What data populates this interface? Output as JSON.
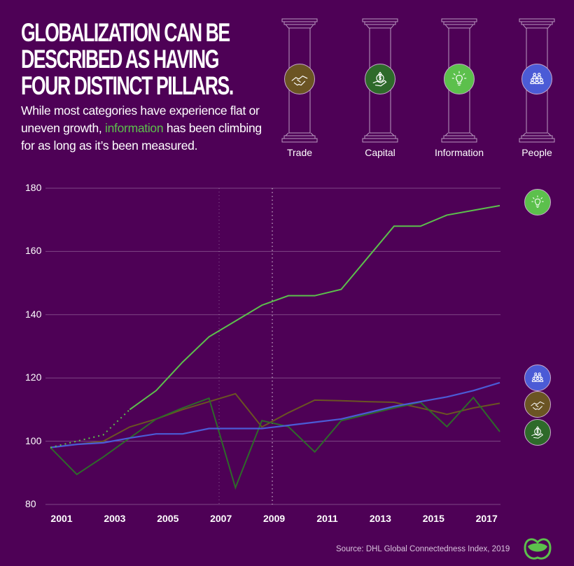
{
  "header": {
    "title": "GLOBALIZATION CAN BE\nDESCRIBED AS HAVING\nFOUR DISTINCT PILLARS.",
    "subtitle_before": "While most categories have experience flat or uneven growth, ",
    "subtitle_highlight": "information",
    "subtitle_after": " has been climbing for as long as it’s been measured."
  },
  "pillars": [
    {
      "label": "Trade",
      "icon": "handshake-icon",
      "color": "#6b5423"
    },
    {
      "label": "Capital",
      "icon": "money-bag-hand-icon",
      "color": "#2e6a2a"
    },
    {
      "label": "Information",
      "icon": "lightbulb-icon",
      "color": "#5cc04c"
    },
    {
      "label": "People",
      "icon": "people-group-icon",
      "color": "#4b5bd6"
    }
  ],
  "source": "Source: DHL Global Connectedness Index, 2019",
  "chart_data": {
    "type": "line",
    "xlabel": "",
    "ylabel": "",
    "ylim": [
      80,
      180
    ],
    "yticks": [
      "180",
      "160",
      "140",
      "120",
      "100",
      "80"
    ],
    "xticks": [
      "2001",
      "2003",
      "2005",
      "2007",
      "2009",
      "2011",
      "2013",
      "2015",
      "2017"
    ],
    "grid": true,
    "x": [
      2001,
      2002,
      2003,
      2004,
      2005,
      2006,
      2007,
      2008,
      2009,
      2010,
      2011,
      2012,
      2013,
      2014,
      2015,
      2016,
      2017,
      2018
    ],
    "series": [
      {
        "key": "information",
        "color": "#5cc04c",
        "dotted_until": 2004,
        "values": [
          98,
          100,
          102,
          110,
          116,
          125,
          133,
          138,
          143,
          146,
          146,
          148,
          158,
          168,
          168,
          171.5,
          173,
          174.5
        ]
      },
      {
        "key": "trade",
        "color": "#6b5423",
        "values": [
          98,
          99,
          100,
          104.5,
          107,
          110,
          112.5,
          115,
          104.5,
          109,
          113,
          112.8,
          112.5,
          112.3,
          110.5,
          108.5,
          110.5,
          112
        ]
      },
      {
        "key": "capital",
        "color": "#2e6a2a",
        "values": [
          98,
          89.5,
          95,
          101,
          107,
          110.5,
          113.6,
          85.3,
          106.5,
          104.6,
          96.6,
          106.5,
          108.5,
          110.5,
          112.3,
          104.6,
          113.8,
          103
        ]
      },
      {
        "key": "people",
        "color": "#4b5bd6",
        "values": [
          98,
          99,
          99.5,
          101,
          102.3,
          102.3,
          104,
          104,
          104,
          105,
          106,
          107,
          109,
          111,
          112.5,
          114,
          116,
          118.5
        ]
      }
    ]
  }
}
